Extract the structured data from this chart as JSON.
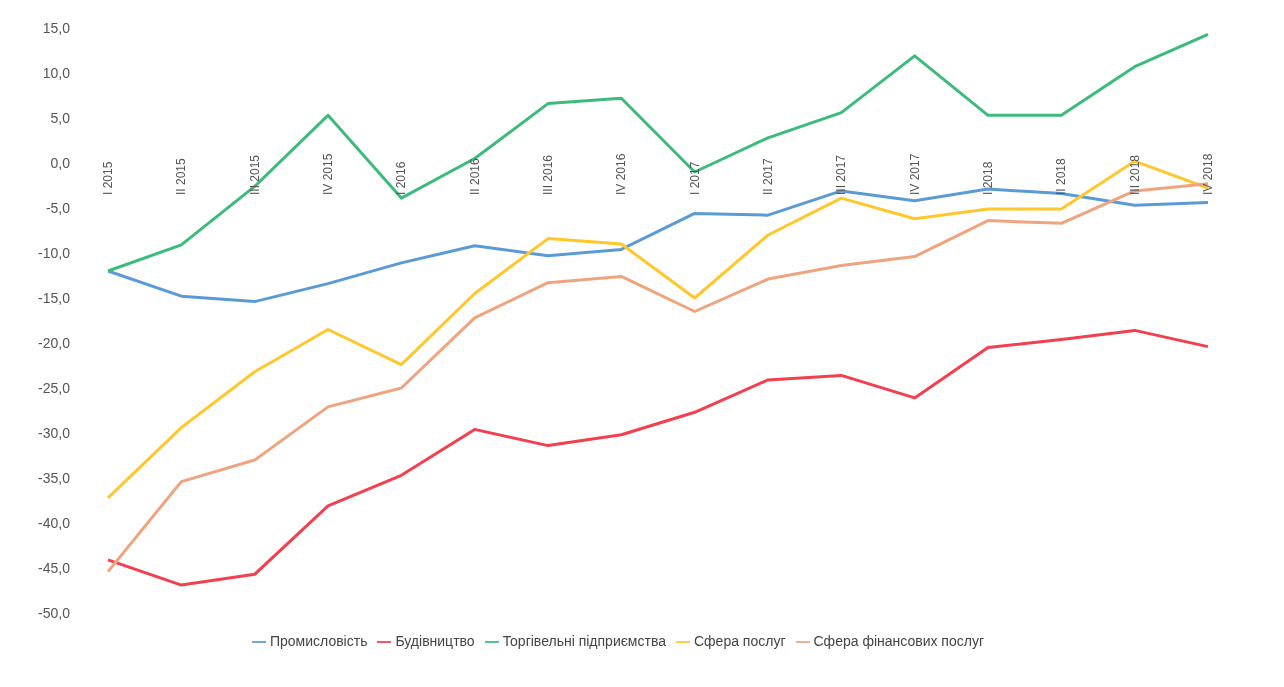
{
  "chart_data": {
    "type": "line",
    "categories": [
      "I 2015",
      "II 2015",
      "III 2015",
      "IV 2015",
      "I 2016",
      "II 2016",
      "III 2016",
      "IV 2016",
      "I 2017",
      "II 2017",
      "III 2017",
      "IV 2017",
      "I 2018",
      "II 2018",
      "III 2018",
      "IV 2018"
    ],
    "series": [
      {
        "name": "Промисловість",
        "color": "#5b9bd5",
        "values": [
          -12.0,
          -14.8,
          -15.4,
          -13.4,
          -11.1,
          -9.2,
          -10.3,
          -9.6,
          -5.6,
          -5.8,
          -3.1,
          -4.2,
          -2.9,
          -3.4,
          -4.7,
          -4.4
        ]
      },
      {
        "name": "Будівництво",
        "color": "#f2404f",
        "values": [
          -44.1,
          -46.9,
          -45.7,
          -38.1,
          -34.7,
          -29.6,
          -31.4,
          -30.2,
          -27.7,
          -24.1,
          -23.6,
          -26.1,
          -20.5,
          -19.6,
          -18.6,
          -20.4
        ]
      },
      {
        "name": "Торгівельні підприємства",
        "color": "#3dbb7b",
        "values": [
          -12.0,
          -9.1,
          -2.6,
          5.3,
          -3.9,
          0.5,
          6.6,
          7.2,
          -1.0,
          2.8,
          5.6,
          11.9,
          5.3,
          5.3,
          10.7,
          14.3
        ]
      },
      {
        "name": "Сфера послуг",
        "color": "#ffc72c",
        "values": [
          -37.2,
          -29.4,
          -23.2,
          -18.5,
          -22.4,
          -14.5,
          -8.4,
          -9.0,
          -15.0,
          -8.0,
          -3.9,
          -6.2,
          -5.1,
          -5.1,
          0.2,
          -2.8
        ]
      },
      {
        "name": "Сфера фінансових послуг",
        "color": "#eea47f",
        "values": [
          -45.4,
          -35.4,
          -33.0,
          -27.1,
          -25.0,
          -17.2,
          -13.3,
          -12.6,
          -16.5,
          -12.9,
          -11.4,
          -10.4,
          -6.4,
          -6.7,
          -3.1,
          -2.3
        ]
      }
    ],
    "ylim": [
      -50,
      15
    ],
    "yticks": [
      {
        "value": 15,
        "label": "15,0"
      },
      {
        "value": 10,
        "label": "10,0"
      },
      {
        "value": 5,
        "label": "5,0"
      },
      {
        "value": 0,
        "label": "0,0"
      },
      {
        "value": -5,
        "label": "-5,0"
      },
      {
        "value": -10,
        "label": "-10,0"
      },
      {
        "value": -15,
        "label": "-15,0"
      },
      {
        "value": -20,
        "label": "-20,0"
      },
      {
        "value": -25,
        "label": "-25,0"
      },
      {
        "value": -30,
        "label": "-30,0"
      },
      {
        "value": -35,
        "label": "-35,0"
      },
      {
        "value": -40,
        "label": "-40,0"
      },
      {
        "value": -45,
        "label": "-45,0"
      },
      {
        "value": -50,
        "label": "-50,0"
      }
    ],
    "grid": false,
    "legend": "bottom",
    "marker": "none",
    "line_style": "solid"
  }
}
